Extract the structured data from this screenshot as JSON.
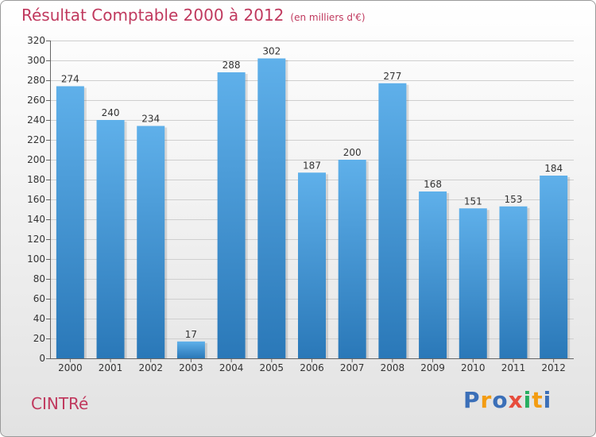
{
  "chart_data": {
    "type": "bar",
    "title": "Résultat Comptable 2000 à 2012",
    "unit_note": "(en milliers d'€)",
    "categories": [
      "2000",
      "2001",
      "2002",
      "2003",
      "2004",
      "2005",
      "2006",
      "2007",
      "2008",
      "2009",
      "2010",
      "2011",
      "2012"
    ],
    "values": [
      274,
      240,
      234,
      17,
      288,
      302,
      187,
      200,
      277,
      168,
      151,
      153,
      184
    ],
    "ylim": [
      0,
      320
    ],
    "yticks": [
      0,
      20,
      40,
      60,
      80,
      100,
      120,
      140,
      160,
      180,
      200,
      220,
      240,
      260,
      280,
      300,
      320
    ],
    "grid": true,
    "xlabel": "",
    "ylabel": ""
  },
  "footer": {
    "town": "CINTRé",
    "logo_letters": [
      "P",
      "r",
      "o",
      "x",
      "i",
      "t",
      "i"
    ]
  },
  "colors": {
    "bar_top": "#5fb0ea",
    "bar_bottom": "#2a78b8",
    "title": "#c0395e",
    "logo": [
      "#3b6fb8",
      "#f39c12",
      "#3b6fb8",
      "#e74c3c",
      "#27ae60",
      "#f39c12",
      "#3b6fb8"
    ]
  }
}
